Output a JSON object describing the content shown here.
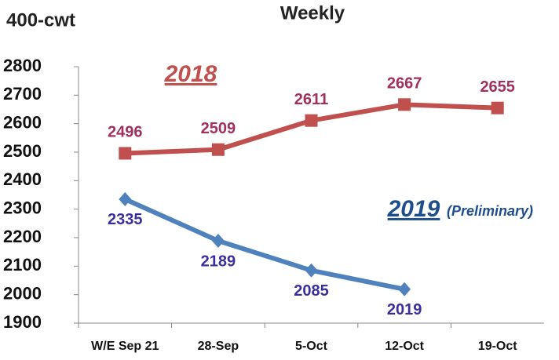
{
  "chart_data": {
    "type": "line",
    "title": "Weekly",
    "y_label": "400-cwt",
    "categories": [
      "W/E Sep 21",
      "28-Sep",
      "5-Oct",
      "12-Oct",
      "19-Oct"
    ],
    "series": [
      {
        "name": "2018",
        "color": "#c0504d",
        "label_color": "#a0305e",
        "marker": "square",
        "values": [
          2496,
          2509,
          2611,
          2667,
          2655
        ]
      },
      {
        "name": "2019",
        "color": "#4f81bd",
        "label_color": "#3b2f9e",
        "marker": "diamond",
        "values": [
          2335,
          2189,
          2085,
          2019,
          null
        ]
      }
    ],
    "annotations": [
      "(Preliminary)"
    ],
    "ylim": [
      1900,
      2800
    ],
    "yticks": [
      1900,
      2000,
      2100,
      2200,
      2300,
      2400,
      2500,
      2600,
      2700,
      2800
    ],
    "grid": false
  }
}
